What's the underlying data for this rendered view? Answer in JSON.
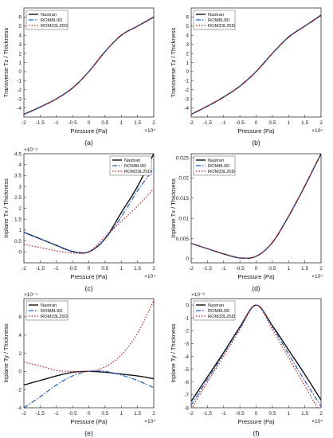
{
  "colors": {
    "nastran": "#111111",
    "rom8l9d": "#1f5fbf",
    "rom33l25d": "#c0211f",
    "axis": "#333333",
    "background": "#ffffff"
  },
  "legend_labels": [
    "Nastran",
    "ROM8L9D",
    "ROM33L25D"
  ],
  "chart_data": [
    {
      "type": "line",
      "panel_label": "(a)",
      "xlabel": "Pressure (Pa)",
      "ylabel": "Transverse Tz / Thickness",
      "x_exponent": "×10⁴",
      "y_exponent": "",
      "xlim": [
        -2,
        2
      ],
      "ylim": [
        -5,
        7
      ],
      "xticks": [
        -2,
        -1.5,
        -1,
        -0.5,
        0,
        0.5,
        1,
        1.5,
        2
      ],
      "yticks": [
        -4,
        -3,
        -2,
        -1,
        0,
        1,
        2,
        3,
        4,
        5,
        6
      ],
      "legend_position": "top-left",
      "x": [
        -2,
        -1.5,
        -1,
        -0.5,
        0,
        0.5,
        1,
        1.5,
        2
      ],
      "series": [
        {
          "name": "Nastran",
          "style": "solid",
          "values": [
            -4.7,
            -3.9,
            -3.0,
            -1.8,
            0.0,
            2.2,
            4.0,
            5.0,
            6.0
          ]
        },
        {
          "name": "ROM8L9D",
          "style": "dashdot",
          "values": [
            -4.7,
            -3.9,
            -3.0,
            -1.8,
            0.0,
            2.2,
            4.0,
            5.0,
            6.0
          ]
        },
        {
          "name": "ROM33L25D",
          "style": "dotted",
          "values": [
            -4.7,
            -3.9,
            -3.0,
            -1.8,
            0.0,
            2.2,
            4.0,
            5.0,
            6.0
          ]
        }
      ]
    },
    {
      "type": "line",
      "panel_label": "(b)",
      "xlabel": "Pressure (Pa)",
      "ylabel": "Transverse Tz / Thickness",
      "x_exponent": "×10⁴",
      "y_exponent": "",
      "xlim": [
        -2,
        2
      ],
      "ylim": [
        -5,
        7
      ],
      "xticks": [
        -2,
        -1.5,
        -1,
        -0.5,
        0,
        0.5,
        1,
        1.5,
        2
      ],
      "yticks": [
        -4,
        -3,
        -2,
        -1,
        0,
        1,
        2,
        3,
        4,
        5,
        6
      ],
      "legend_position": "top-left",
      "x": [
        -2,
        -1.5,
        -1,
        -0.5,
        0,
        0.5,
        1,
        1.5,
        2
      ],
      "series": [
        {
          "name": "Nastran",
          "style": "solid",
          "values": [
            -4.7,
            -3.8,
            -2.8,
            -1.6,
            0.0,
            2.0,
            3.8,
            5.0,
            6.2
          ]
        },
        {
          "name": "ROM8L9D",
          "style": "dashdot",
          "values": [
            -4.7,
            -3.8,
            -2.8,
            -1.6,
            0.0,
            2.0,
            3.8,
            5.0,
            6.2
          ]
        },
        {
          "name": "ROM33L25D",
          "style": "dotted",
          "values": [
            -4.7,
            -3.8,
            -2.8,
            -1.6,
            0.0,
            2.0,
            3.8,
            5.0,
            6.2
          ]
        }
      ]
    },
    {
      "type": "line",
      "panel_label": "(c)",
      "xlabel": "Pressure (Pa)",
      "ylabel": "Inplane Tx / Thickness",
      "x_exponent": "×10⁴",
      "y_exponent": "×10⁻³",
      "xlim": [
        -2,
        2
      ],
      "ylim": [
        -0.5,
        4.5
      ],
      "xticks": [
        -2,
        -1.5,
        -1,
        -0.5,
        0,
        0.5,
        1,
        1.5,
        2
      ],
      "yticks": [
        0,
        0.5,
        1,
        1.5,
        2,
        2.5,
        3,
        3.5,
        4,
        4.5
      ],
      "legend_position": "top-right",
      "x": [
        -2,
        -1.5,
        -1,
        -0.5,
        0,
        0.5,
        1,
        1.5,
        2
      ],
      "series": [
        {
          "name": "Nastran",
          "style": "solid",
          "values": [
            0.9,
            0.6,
            0.3,
            0.02,
            0.0,
            0.6,
            1.8,
            3.0,
            4.5
          ]
        },
        {
          "name": "ROM8L9D",
          "style": "dashdot",
          "values": [
            0.9,
            0.6,
            0.3,
            0.02,
            0.0,
            0.6,
            1.6,
            2.8,
            3.8
          ]
        },
        {
          "name": "ROM33L25D",
          "style": "dotted",
          "values": [
            0.35,
            0.2,
            0.05,
            -0.05,
            0.0,
            0.7,
            1.4,
            2.1,
            2.9
          ]
        }
      ]
    },
    {
      "type": "line",
      "panel_label": "(d)",
      "xlabel": "Pressure (Pa)",
      "ylabel": "Inplane Tx / Thickness",
      "x_exponent": "×10⁴",
      "y_exponent": "",
      "xlim": [
        -2,
        2
      ],
      "ylim": [
        -0.001,
        0.026
      ],
      "xticks": [
        -2,
        -1.5,
        -1,
        -0.5,
        0,
        0.5,
        1,
        1.5,
        2
      ],
      "yticks": [
        0,
        0.005,
        0.01,
        0.015,
        0.02,
        0.025
      ],
      "ytick_labels": [
        "0",
        "0.005",
        "0.01",
        "0.015",
        "0.02",
        "0.025"
      ],
      "legend_position": "top-left",
      "x": [
        -2,
        -1.5,
        -1,
        -0.5,
        0,
        0.5,
        1,
        1.5,
        2
      ],
      "series": [
        {
          "name": "Nastran",
          "style": "solid",
          "values": [
            0.0038,
            0.0025,
            0.0012,
            0.0002,
            0.0006,
            0.004,
            0.0105,
            0.018,
            0.026
          ]
        },
        {
          "name": "ROM8L9D",
          "style": "dashdot",
          "values": [
            0.0038,
            0.0025,
            0.0012,
            0.0002,
            0.0006,
            0.004,
            0.0105,
            0.018,
            0.026
          ]
        },
        {
          "name": "ROM33L25D",
          "style": "dotted",
          "values": [
            0.0038,
            0.0025,
            0.0012,
            0.0002,
            0.0006,
            0.004,
            0.0105,
            0.018,
            0.026
          ]
        }
      ]
    },
    {
      "type": "line",
      "panel_label": "(e)",
      "xlabel": "Pressure (Pa)",
      "ylabel": "Inplane Ty / Thickness",
      "x_exponent": "×10⁴",
      "y_exponent": "×10⁻⁴",
      "xlim": [
        -2,
        2
      ],
      "ylim": [
        -4,
        8
      ],
      "xticks": [
        -2,
        -1.5,
        -1,
        -0.5,
        0,
        0.5,
        1,
        1.5,
        2
      ],
      "yticks": [
        -4,
        -2,
        0,
        2,
        4,
        6
      ],
      "legend_position": "top-left",
      "x": [
        -2,
        -1.5,
        -1,
        -0.5,
        0,
        0.5,
        1,
        1.5,
        2
      ],
      "series": [
        {
          "name": "Nastran",
          "style": "solid",
          "values": [
            -1.5,
            -1.0,
            -0.5,
            -0.1,
            0.0,
            -0.1,
            -0.3,
            -0.5,
            -0.8
          ]
        },
        {
          "name": "ROM8L9D",
          "style": "dashdot",
          "values": [
            -4.0,
            -2.8,
            -1.5,
            -0.5,
            0.0,
            0.0,
            -0.4,
            -1.0,
            -1.8
          ]
        },
        {
          "name": "ROM33L25D",
          "style": "dotted",
          "values": [
            1.0,
            0.6,
            0.1,
            0.0,
            0.0,
            0.5,
            1.8,
            4.2,
            7.8
          ]
        }
      ]
    },
    {
      "type": "line",
      "panel_label": "(f)",
      "xlabel": "Pressure (Pa)",
      "ylabel": "Inplane Ty / Thickness",
      "x_exponent": "×10⁴",
      "y_exponent": "×10⁻³",
      "xlim": [
        -2,
        2
      ],
      "ylim": [
        -8,
        0.5
      ],
      "xticks": [
        -2,
        -1.5,
        -1,
        -0.5,
        0,
        0.5,
        1,
        1.5,
        2
      ],
      "yticks": [
        -8,
        -7,
        -6,
        -5,
        -4,
        -3,
        -2,
        -1,
        0
      ],
      "legend_position": "top-left",
      "x": [
        -2,
        -1.5,
        -1,
        -0.5,
        0,
        0.5,
        1,
        1.5,
        2
      ],
      "series": [
        {
          "name": "Nastran",
          "style": "solid",
          "values": [
            -7.5,
            -5.6,
            -3.7,
            -1.7,
            0.0,
            -1.6,
            -3.5,
            -5.4,
            -7.4
          ]
        },
        {
          "name": "ROM8L9D",
          "style": "dashdot",
          "values": [
            -7.8,
            -5.8,
            -3.8,
            -1.8,
            0.0,
            -1.7,
            -3.8,
            -5.9,
            -7.9
          ]
        },
        {
          "name": "ROM33L25D",
          "style": "dotted",
          "values": [
            -8.1,
            -6.0,
            -4.0,
            -1.9,
            0.0,
            -1.9,
            -4.1,
            -6.3,
            -8.5
          ]
        }
      ]
    }
  ]
}
